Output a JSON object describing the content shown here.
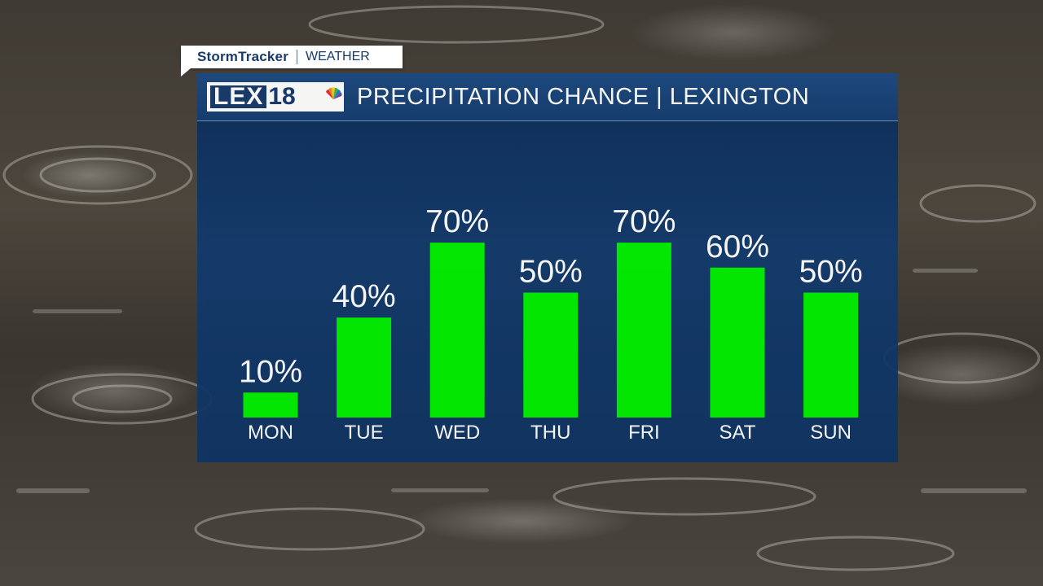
{
  "header": {
    "brand": "StormTracker",
    "section": "WEATHER"
  },
  "logo": {
    "letters": "LEX",
    "number": "18"
  },
  "colors": {
    "bar": "#00f000",
    "panel": "#0f3362",
    "text": "#ffffff"
  },
  "chart_data": {
    "type": "bar",
    "title": "PRECIPITATION CHANCE | LEXINGTON",
    "categories": [
      "MON",
      "TUE",
      "WED",
      "THU",
      "FRI",
      "SAT",
      "SUN"
    ],
    "values": [
      10,
      40,
      70,
      50,
      70,
      60,
      50
    ],
    "value_labels": [
      "10%",
      "40%",
      "70%",
      "50%",
      "70%",
      "60%",
      "50%"
    ],
    "unit": "%",
    "ylim": [
      0,
      100
    ],
    "grid": false,
    "legend": "none"
  }
}
